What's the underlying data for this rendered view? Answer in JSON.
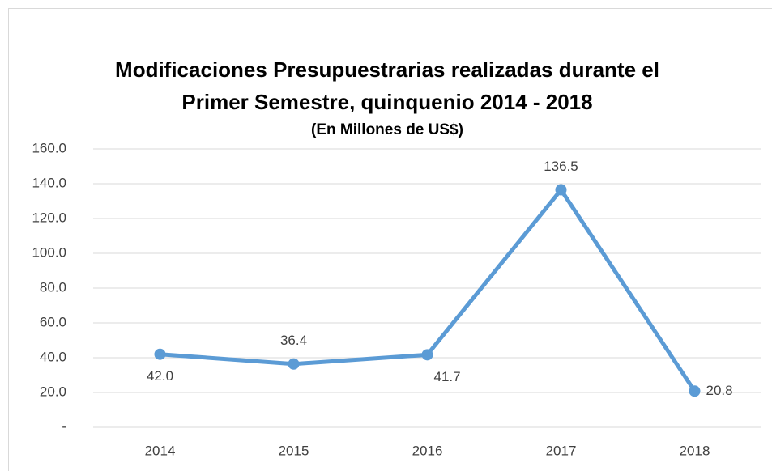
{
  "chart_data": {
    "type": "line",
    "title": [
      "Modificaciones Presupuestrarias realizadas durante el",
      "Primer Semestre, quinquenio 2014 - 2018"
    ],
    "subtitle": "(En Millones de US$)",
    "categories": [
      "2014",
      "2015",
      "2016",
      "2017",
      "2018"
    ],
    "series": [
      {
        "name": "Modificaciones",
        "color": "#5b9bd5",
        "values": [
          42.0,
          36.4,
          41.7,
          136.5,
          20.8
        ],
        "value_labels": [
          "42.0",
          "36.4",
          "41.7",
          "136.5",
          "20.8"
        ]
      }
    ],
    "ylim": [
      0,
      160
    ],
    "yticks": [
      {
        "value": 0,
        "label": "-"
      },
      {
        "value": 20,
        "label": "20.0"
      },
      {
        "value": 40,
        "label": "40.0"
      },
      {
        "value": 60,
        "label": "60.0"
      },
      {
        "value": 80,
        "label": "80.0"
      },
      {
        "value": 100,
        "label": "100.0"
      },
      {
        "value": 120,
        "label": "120.0"
      },
      {
        "value": 140,
        "label": "140.0"
      },
      {
        "value": 160,
        "label": "160.0"
      }
    ],
    "grid": true
  }
}
